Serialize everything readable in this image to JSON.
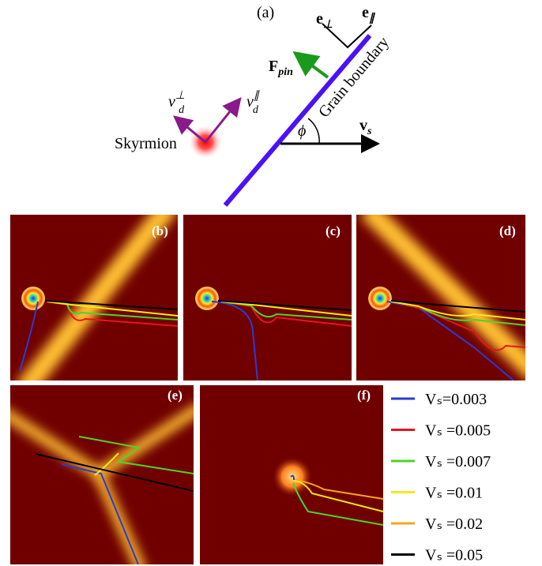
{
  "diagram": {
    "label": "(a)",
    "e_perp": {
      "symbol": "e",
      "sub": "⊥"
    },
    "e_par": {
      "symbol": "e",
      "sub": "∥"
    },
    "f_pin": {
      "symbol": "F",
      "sub": "pin"
    },
    "grain_boundary": "Grain boundary",
    "vd_perp": {
      "symbol": "v",
      "sub": "d",
      "sup": "⊥"
    },
    "vd_par": {
      "symbol": "v",
      "sub": "d",
      "sup": "∥"
    },
    "skyrmion": "Skyrmion",
    "phi": "ϕ",
    "vs": {
      "symbol": "v",
      "sub": "s"
    }
  },
  "panels": [
    "(b)",
    "(c)",
    "(d)",
    "(e)",
    "(f)"
  ],
  "legend": [
    {
      "name": "Vₛ=0.003",
      "color": "#2b3bd1"
    },
    {
      "name": "Vₛ =0.005",
      "color": "#e8141c"
    },
    {
      "name": "Vₛ =0.007",
      "color": "#4fd32a"
    },
    {
      "name": "Vₛ =0.01",
      "color": "#f2ea1a"
    },
    {
      "name": "Vₛ =0.02",
      "color": "#f5a71a"
    },
    {
      "name": "Vₛ =0.05",
      "color": "#000000"
    }
  ]
}
